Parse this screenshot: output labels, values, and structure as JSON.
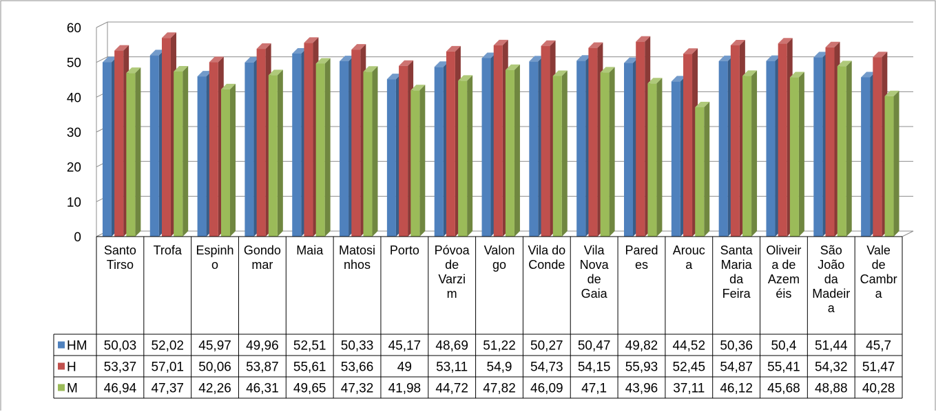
{
  "chart_data": {
    "type": "bar",
    "categories": [
      [
        "Santo",
        "Tirso"
      ],
      [
        "Trofa"
      ],
      [
        "Espinh",
        "o"
      ],
      [
        "Gondo",
        "mar"
      ],
      [
        "Maia"
      ],
      [
        "Matosi",
        "nhos"
      ],
      [
        "Porto"
      ],
      [
        "Póvoa",
        "de",
        "Varzi",
        "m"
      ],
      [
        "Valon",
        "go"
      ],
      [
        "Vila do",
        "Conde"
      ],
      [
        "Vila",
        "Nova",
        "de",
        "Gaia"
      ],
      [
        "Pared",
        "es"
      ],
      [
        "Arouc",
        "a"
      ],
      [
        "Santa",
        "Maria",
        "da",
        "Feira"
      ],
      [
        "Oliveir",
        "a de",
        "Azem",
        "éis"
      ],
      [
        "São",
        "João",
        "da",
        "Madeir",
        "a"
      ],
      [
        "Vale",
        "de",
        "Cambr",
        "a"
      ]
    ],
    "series": [
      {
        "name": "HM",
        "color": "#4f81bd",
        "values": [
          50.03,
          52.02,
          45.97,
          49.96,
          52.51,
          50.33,
          45.17,
          48.69,
          51.22,
          50.27,
          50.47,
          49.82,
          44.52,
          50.36,
          50.4,
          51.44,
          45.7
        ],
        "labels": [
          "50,03",
          "52,02",
          "45,97",
          "49,96",
          "52,51",
          "50,33",
          "45,17",
          "48,69",
          "51,22",
          "50,27",
          "50,47",
          "49,82",
          "44,52",
          "50,36",
          "50,4",
          "51,44",
          "45,7"
        ]
      },
      {
        "name": "H",
        "color": "#c0504d",
        "values": [
          53.37,
          57.01,
          50.06,
          53.87,
          55.61,
          53.66,
          49,
          53.11,
          54.9,
          54.73,
          54.15,
          55.93,
          52.45,
          54.87,
          55.41,
          54.32,
          51.47
        ],
        "labels": [
          "53,37",
          "57,01",
          "50,06",
          "53,87",
          "55,61",
          "53,66",
          "49",
          "53,11",
          "54,9",
          "54,73",
          "54,15",
          "55,93",
          "52,45",
          "54,87",
          "55,41",
          "54,32",
          "51,47"
        ]
      },
      {
        "name": "M",
        "color": "#9bbb59",
        "values": [
          46.94,
          47.37,
          42.26,
          46.31,
          49.65,
          47.32,
          41.98,
          44.72,
          47.82,
          46.09,
          47.1,
          43.96,
          37.11,
          46.12,
          45.68,
          48.88,
          40.28
        ],
        "labels": [
          "46,94",
          "47,37",
          "42,26",
          "46,31",
          "49,65",
          "47,32",
          "41,98",
          "44,72",
          "47,82",
          "46,09",
          "47,1",
          "43,96",
          "37,11",
          "46,12",
          "45,68",
          "48,88",
          "40,28"
        ]
      }
    ],
    "yticks": [
      "0",
      "10",
      "20",
      "30",
      "40",
      "50",
      "60"
    ],
    "ylim": [
      0,
      60
    ],
    "grid": true,
    "legend": "data-table-left",
    "data_table": true
  }
}
